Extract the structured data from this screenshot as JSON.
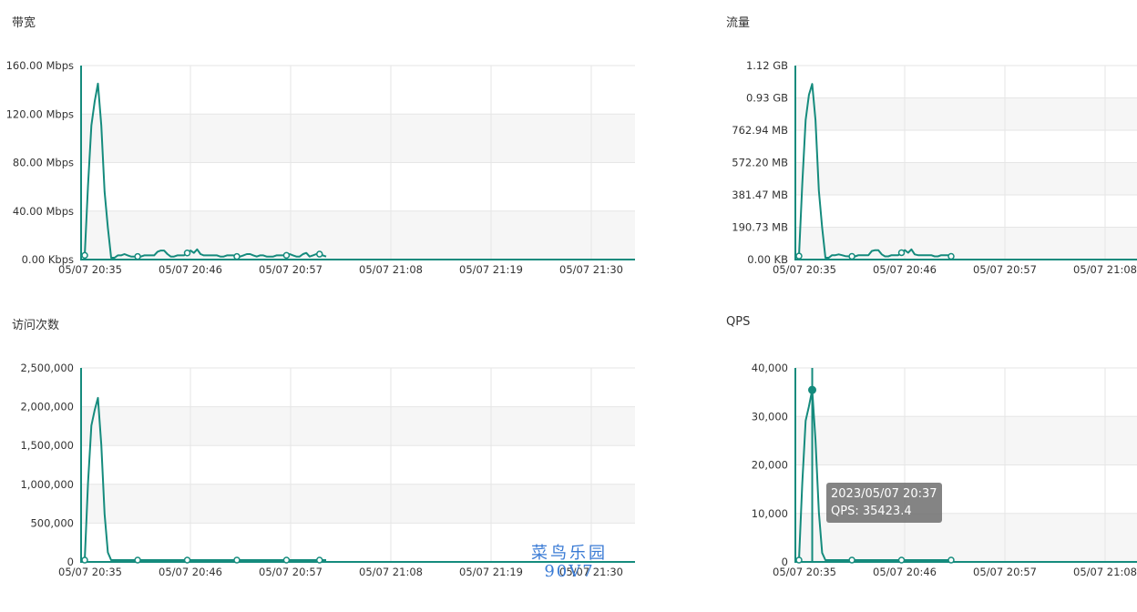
{
  "colors": {
    "line": "#158b7d",
    "grid": "#e6e6e6",
    "band": "#f6f6f6"
  },
  "tooltip": {
    "line1": "2023/05/07 20:37",
    "line2": "QPS: 35423.4"
  },
  "watermark": {
    "line1": "菜鸟乐园",
    "line2": "90V7"
  },
  "chart_data": [
    {
      "type": "line",
      "title": "带宽",
      "x_labels": [
        "05/07 20:35",
        "05/07 20:46",
        "05/07 20:57",
        "05/07 21:08",
        "05/07 21:19",
        "05/07 21:30"
      ],
      "y_labels": [
        "160.00 Mbps",
        "120.00 Mbps",
        "80.00 Mbps",
        "40.00 Mbps",
        "0.00 Kbps"
      ],
      "ylim": [
        0,
        160
      ],
      "y_unit": "Mbps",
      "grid": true,
      "series": [
        {
          "values": [
            2,
            60,
            110,
            130,
            145,
            110,
            55,
            25,
            0,
            0,
            2,
            2,
            3,
            2,
            1,
            1,
            1,
            1,
            2,
            2,
            2,
            2,
            5,
            6,
            6,
            3,
            1,
            1,
            2,
            2,
            2,
            4,
            6,
            4,
            7,
            3,
            2,
            2,
            2,
            2,
            2,
            1,
            1,
            2,
            2,
            2,
            1,
            1,
            2,
            3,
            3,
            2,
            1,
            2,
            2,
            1,
            1,
            1,
            2,
            2,
            2,
            2,
            3,
            2,
            1,
            1,
            3,
            4,
            1,
            2,
            3,
            3,
            2,
            1
          ]
        }
      ]
    },
    {
      "type": "line",
      "title": "流量",
      "x_labels": [
        "05/07 20:35",
        "05/07 20:46",
        "05/07 20:57",
        "05/07 21:08"
      ],
      "y_labels": [
        "1.12 GB",
        "0.93 GB",
        "762.94 MB",
        "572.20 MB",
        "381.47 MB",
        "190.73 MB",
        "0.00 KB"
      ],
      "ylim": [
        0,
        1144.41
      ],
      "y_unit": "MB",
      "grid": true,
      "series": [
        {
          "values": [
            10,
            440,
            820,
            970,
            1035,
            820,
            400,
            180,
            0,
            0,
            15,
            15,
            20,
            15,
            10,
            8,
            8,
            8,
            15,
            15,
            15,
            15,
            40,
            45,
            45,
            20,
            8,
            8,
            15,
            15,
            15,
            30,
            45,
            30,
            50,
            20,
            15,
            15,
            15,
            15,
            15,
            8,
            8,
            15,
            15,
            15,
            8
          ]
        }
      ]
    },
    {
      "type": "line",
      "title": "访问次数",
      "x_labels": [
        "05/07 20:35",
        "05/07 20:46",
        "05/07 20:57",
        "05/07 21:08",
        "05/07 21:19",
        "05/07 21:30"
      ],
      "y_labels": [
        "2,500,000",
        "2,000,000",
        "1,500,000",
        "1,000,000",
        "500,000",
        "0"
      ],
      "ylim": [
        0,
        2500000
      ],
      "grid": true,
      "series": [
        {
          "values": [
            0,
            1000000,
            1750000,
            1950000,
            2110000,
            1500000,
            600000,
            100000,
            0,
            0,
            0,
            0,
            0,
            0,
            0,
            0,
            0,
            0,
            0,
            0,
            0,
            0,
            0,
            0,
            0,
            0,
            0,
            0,
            0,
            0,
            0,
            0,
            0,
            0,
            0,
            0,
            0,
            0,
            0,
            0,
            0,
            0,
            0,
            0,
            0,
            0,
            0,
            0,
            0,
            0,
            0,
            0,
            0,
            0,
            0,
            0,
            0,
            0,
            0,
            0,
            0,
            0,
            0,
            0,
            0,
            0,
            0,
            0,
            0,
            0,
            0,
            0,
            0,
            0
          ]
        }
      ]
    },
    {
      "type": "line",
      "title": "QPS",
      "x_labels": [
        "05/07 20:35",
        "05/07 20:46",
        "05/07 20:57",
        "05/07 21:08"
      ],
      "y_labels": [
        "40,000",
        "30,000",
        "20,000",
        "10,000",
        "0"
      ],
      "ylim": [
        0,
        40000
      ],
      "grid": true,
      "series": [
        {
          "values": [
            0,
            16000,
            29000,
            32000,
            35423.4,
            25000,
            10000,
            1500,
            0,
            0,
            0,
            0,
            0,
            0,
            0,
            0,
            0,
            0,
            0,
            0,
            0,
            0,
            0,
            0,
            0,
            0,
            0,
            0,
            0,
            0,
            0,
            0,
            0,
            0,
            0,
            0,
            0,
            0,
            0,
            0,
            0,
            0,
            0,
            0,
            0,
            0,
            0
          ]
        }
      ]
    }
  ]
}
